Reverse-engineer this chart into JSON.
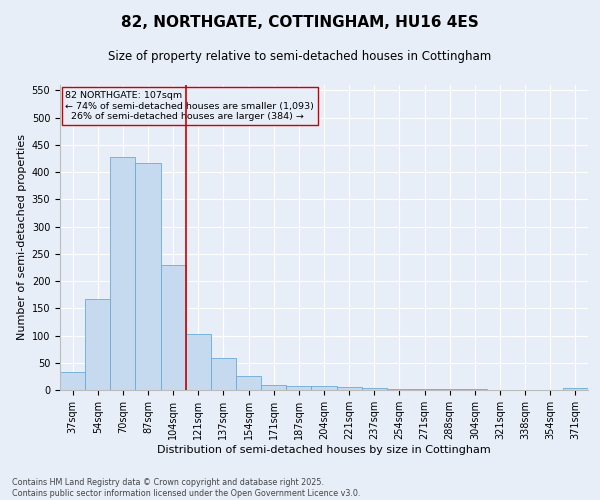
{
  "title": "82, NORTHGATE, COTTINGHAM, HU16 4ES",
  "subtitle": "Size of property relative to semi-detached houses in Cottingham",
  "xlabel": "Distribution of semi-detached houses by size in Cottingham",
  "ylabel": "Number of semi-detached properties",
  "categories": [
    "37sqm",
    "54sqm",
    "70sqm",
    "87sqm",
    "104sqm",
    "121sqm",
    "137sqm",
    "154sqm",
    "171sqm",
    "187sqm",
    "204sqm",
    "221sqm",
    "237sqm",
    "254sqm",
    "271sqm",
    "288sqm",
    "304sqm",
    "321sqm",
    "338sqm",
    "354sqm",
    "371sqm"
  ],
  "values": [
    33,
    168,
    428,
    417,
    230,
    102,
    59,
    25,
    10,
    8,
    8,
    5,
    3,
    2,
    1,
    1,
    1,
    0,
    0,
    0,
    4
  ],
  "bar_color": "#c5d9ef",
  "bar_edge_color": "#6aaad4",
  "vline_x": 4.5,
  "vline_color": "#cc0000",
  "annotation_text": "82 NORTHGATE: 107sqm\n← 74% of semi-detached houses are smaller (1,093)\n  26% of semi-detached houses are larger (384) →",
  "annotation_box_color": "#cc0000",
  "ylim": [
    0,
    560
  ],
  "yticks": [
    0,
    50,
    100,
    150,
    200,
    250,
    300,
    350,
    400,
    450,
    500,
    550
  ],
  "bg_color": "#e8eef8",
  "footer": "Contains HM Land Registry data © Crown copyright and database right 2025.\nContains public sector information licensed under the Open Government Licence v3.0.",
  "title_fontsize": 11,
  "subtitle_fontsize": 8.5,
  "axis_label_fontsize": 8,
  "tick_fontsize": 7,
  "footer_fontsize": 5.8
}
